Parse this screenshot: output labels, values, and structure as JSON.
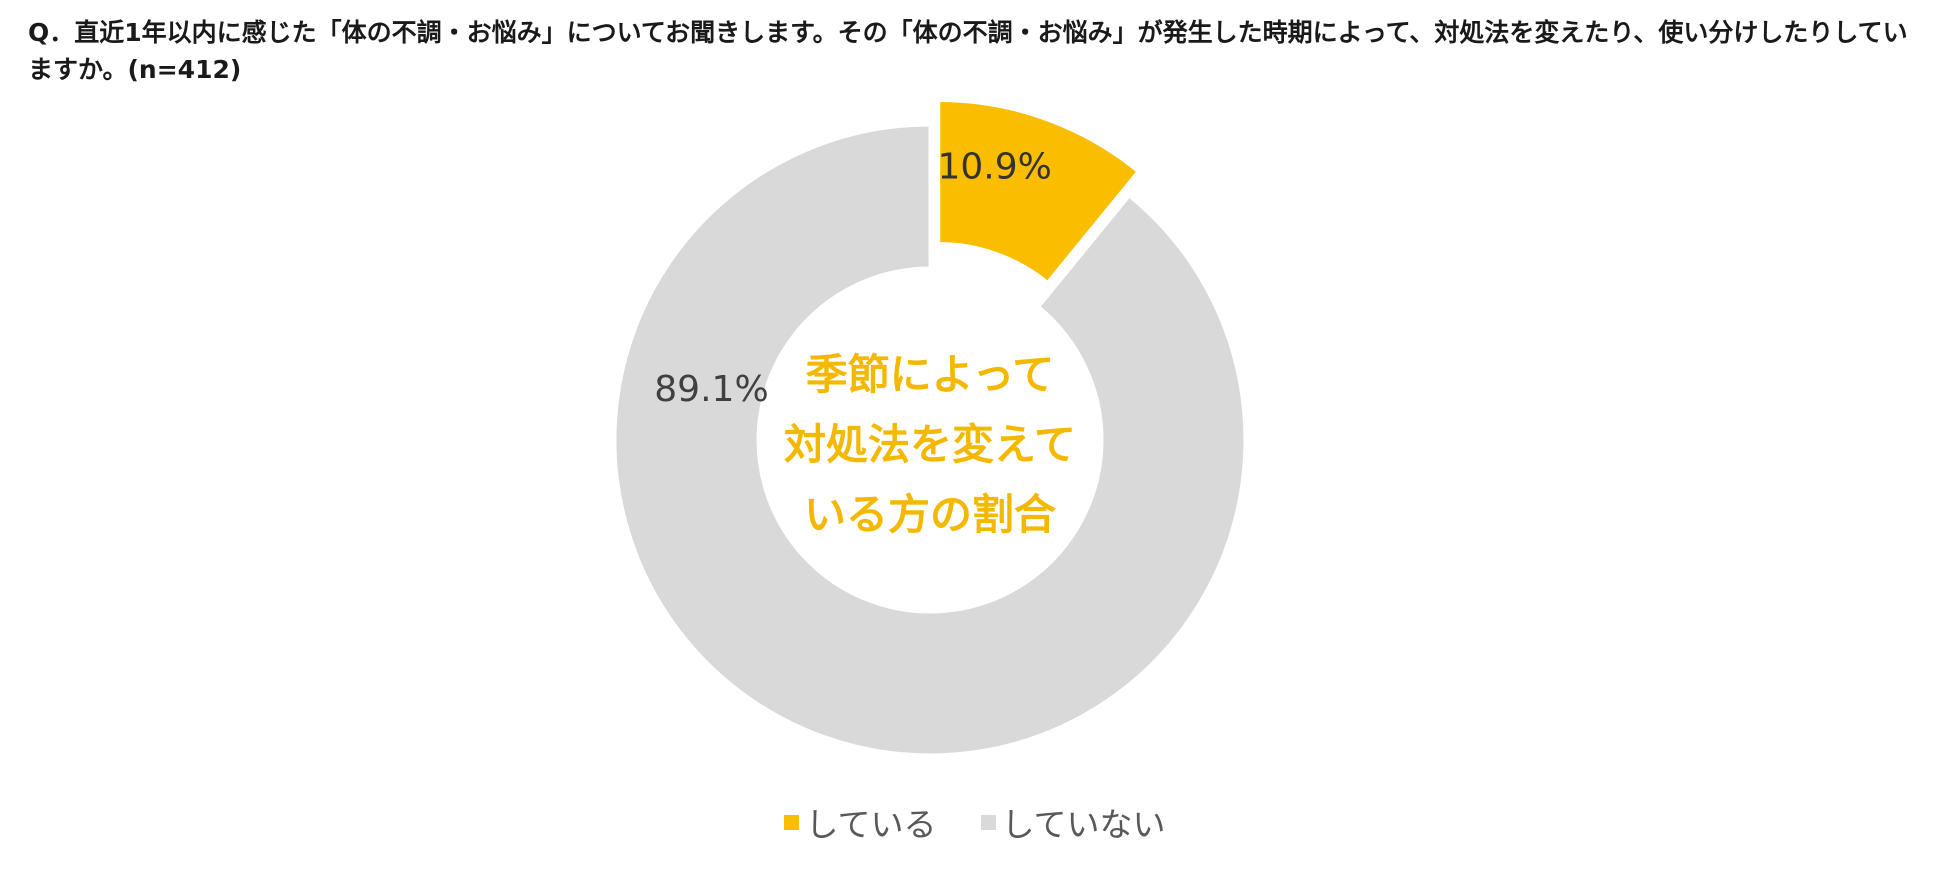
{
  "question": "Q．直近1年以内に感じた「体の不調・お悩み」についてお聞きします。その「体の不調・お悩み」が発生した時期によって、対処法を変えたり、使い分けしたりしていますか。(n=412)",
  "center_label": {
    "line1": "季節によって",
    "line2": "対処法を変えて",
    "line3": "いる方の割合"
  },
  "chart_data": {
    "type": "pie",
    "variant": "donut",
    "exploded_slice": "している",
    "title": "",
    "slices": [
      {
        "label": "している",
        "value": 10.9,
        "data_label": "10.9%",
        "color": "#fbbd00"
      },
      {
        "label": "していない",
        "value": 89.1,
        "data_label": "89.1%",
        "color": "#d9d9d9"
      }
    ],
    "legend": {
      "placement": "bottom",
      "entries": [
        "している",
        "していない"
      ]
    }
  }
}
